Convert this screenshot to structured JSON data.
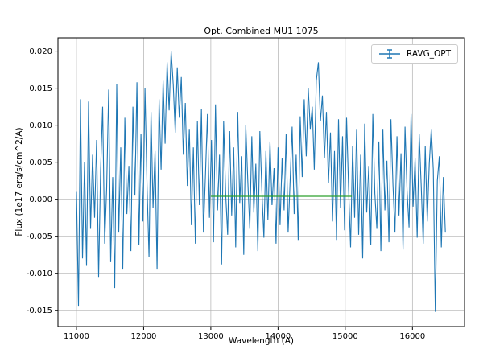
{
  "chart_data": {
    "type": "line",
    "title": "Opt. Combined MU1 1075",
    "xlabel": "Wavelength (A)",
    "ylabel": "Flux (1e17 erg/s/cm^2/A)",
    "xlim": [
      10725,
      16775
    ],
    "ylim": [
      -0.0172,
      0.0218
    ],
    "xticks": [
      11000,
      12000,
      13000,
      14000,
      15000,
      16000
    ],
    "yticks": [
      -0.015,
      -0.01,
      -0.005,
      0.0,
      0.005,
      0.01,
      0.015,
      0.02
    ],
    "grid": true,
    "legend": {
      "position": "upper right",
      "entries": [
        {
          "label": "RAVG_OPT",
          "color": "#1f77b4",
          "style": "errorbar-line"
        }
      ]
    },
    "series": [
      {
        "name": "RAVG_OPT",
        "color": "#1f77b4",
        "x_start": 11000,
        "x_step": 30,
        "values": [
          0.001,
          -0.0145,
          0.0135,
          -0.008,
          0.005,
          -0.009,
          0.0132,
          -0.004,
          0.006,
          -0.0025,
          0.008,
          -0.0105,
          0.004,
          0.0125,
          -0.006,
          0.0015,
          0.0148,
          -0.0085,
          0.003,
          -0.012,
          0.0155,
          -0.0045,
          0.007,
          -0.0095,
          0.011,
          -0.002,
          0.0045,
          -0.007,
          0.0125,
          0.0005,
          0.0158,
          -0.0062,
          0.0088,
          -0.003,
          0.015,
          0.002,
          -0.0078,
          0.0118,
          -0.0012,
          0.0065,
          -0.0095,
          0.0135,
          0.004,
          0.016,
          0.0075,
          0.0185,
          0.012,
          0.02,
          0.0155,
          0.009,
          0.0178,
          0.011,
          0.0165,
          0.006,
          0.013,
          0.0018,
          0.0095,
          -0.0035,
          0.007,
          -0.006,
          0.0105,
          -0.0008,
          0.0122,
          -0.0045,
          0.0032,
          0.0115,
          -0.0025,
          0.008,
          -0.0058,
          0.0128,
          -0.0015,
          0.006,
          -0.0088,
          0.0105,
          0.0008,
          -0.0048,
          0.0092,
          -0.0022,
          0.007,
          -0.0065,
          0.0118,
          -0.0005,
          0.0058,
          -0.0075,
          0.01,
          0.0025,
          -0.004,
          0.0085,
          -0.0018,
          0.0048,
          -0.007,
          0.0092,
          0.0012,
          -0.0052,
          0.0065,
          -0.0028,
          0.0078,
          -0.0008,
          0.0042,
          -0.006,
          0.007,
          -0.0035,
          0.0055,
          -0.0015,
          0.0088,
          -0.0045,
          0.0025,
          0.0098,
          -0.002,
          0.006,
          -0.0055,
          0.0112,
          0.003,
          0.0135,
          0.0058,
          0.015,
          0.0095,
          0.0125,
          0.004,
          0.016,
          0.0185,
          0.0105,
          0.014,
          0.0055,
          0.0118,
          0.0022,
          0.009,
          -0.003,
          0.0065,
          -0.0055,
          0.0108,
          -0.0012,
          0.0085,
          -0.0042,
          0.011,
          0.0015,
          -0.0065,
          0.0072,
          -0.0025,
          0.0095,
          -0.0048,
          0.006,
          -0.008,
          0.0102,
          -0.0018,
          0.0045,
          -0.0062,
          0.0115,
          0.0008,
          -0.004,
          0.0078,
          -0.007,
          0.0095,
          -0.0015,
          0.0052,
          -0.0058,
          0.0108,
          0.002,
          -0.0045,
          0.0085,
          -0.0022,
          0.0062,
          -0.0068,
          0.0098,
          0.0012,
          -0.0038,
          0.0115,
          -0.001,
          0.0055,
          -0.0052,
          0.0088,
          0.0018,
          -0.006,
          0.0072,
          -0.003,
          0.0048,
          0.0095,
          0.004,
          -0.0152,
          0.0025,
          0.0058,
          -0.0065,
          0.003,
          -0.0045
        ]
      },
      {
        "name": "baseline-segment",
        "color": "#2ca02c",
        "x": [
          13000,
          15100
        ],
        "y": [
          0.0004,
          0.0004
        ]
      }
    ],
    "colors": {
      "series_blue": "#1f77b4",
      "baseline_green": "#2ca02c",
      "grid_gray": "#b0b0b0"
    }
  }
}
